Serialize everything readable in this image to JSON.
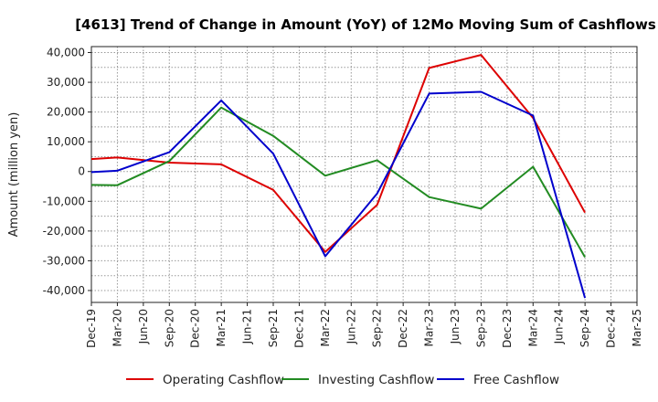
{
  "chart_data": {
    "type": "line",
    "title": "[4613]  Trend of Change in Amount (YoY) of 12Mo Moving Sum of Cashflows",
    "xlabel": "",
    "ylabel": "Amount (million yen)",
    "ylim": [
      -44000,
      42000
    ],
    "yticks": [
      40000,
      30000,
      20000,
      10000,
      0,
      -10000,
      -20000,
      -30000,
      -40000
    ],
    "ytick_labels": [
      "40,000",
      "30,000",
      "20,000",
      "10,000",
      "0",
      "-10,000",
      "-20,000",
      "-30,000",
      "-40,000"
    ],
    "categories": [
      "Dec-19",
      "Mar-20",
      "Jun-20",
      "Sep-20",
      "Dec-20",
      "Mar-21",
      "Jun-21",
      "Sep-21",
      "Dec-21",
      "Mar-22",
      "Jun-22",
      "Sep-22",
      "Dec-22",
      "Mar-23",
      "Jun-23",
      "Sep-23",
      "Dec-23",
      "Mar-24",
      "Jun-24",
      "Sep-24",
      "Dec-24",
      "Mar-25"
    ],
    "grid": true,
    "legend_position": "bottom",
    "series": [
      {
        "name": "Operating Cashflow",
        "color": "#dd0000",
        "values": [
          4200,
          4700,
          null,
          3000,
          null,
          2400,
          null,
          -6200,
          null,
          -27000,
          null,
          -11200,
          null,
          34800,
          null,
          39200,
          null,
          18000,
          null,
          -13800,
          null,
          null
        ]
      },
      {
        "name": "Investing Cashflow",
        "color": "#228b22",
        "values": [
          -4500,
          -4600,
          null,
          3500,
          null,
          21500,
          null,
          12000,
          null,
          -1400,
          null,
          3800,
          null,
          -8600,
          null,
          -12500,
          null,
          1600,
          null,
          -28800,
          null,
          null
        ]
      },
      {
        "name": "Free Cashflow",
        "color": "#0000cc",
        "values": [
          -200,
          300,
          null,
          6500,
          null,
          23900,
          null,
          6000,
          null,
          -28500,
          null,
          -7400,
          null,
          26200,
          null,
          26800,
          null,
          18800,
          null,
          -42500,
          null,
          null
        ]
      }
    ]
  }
}
